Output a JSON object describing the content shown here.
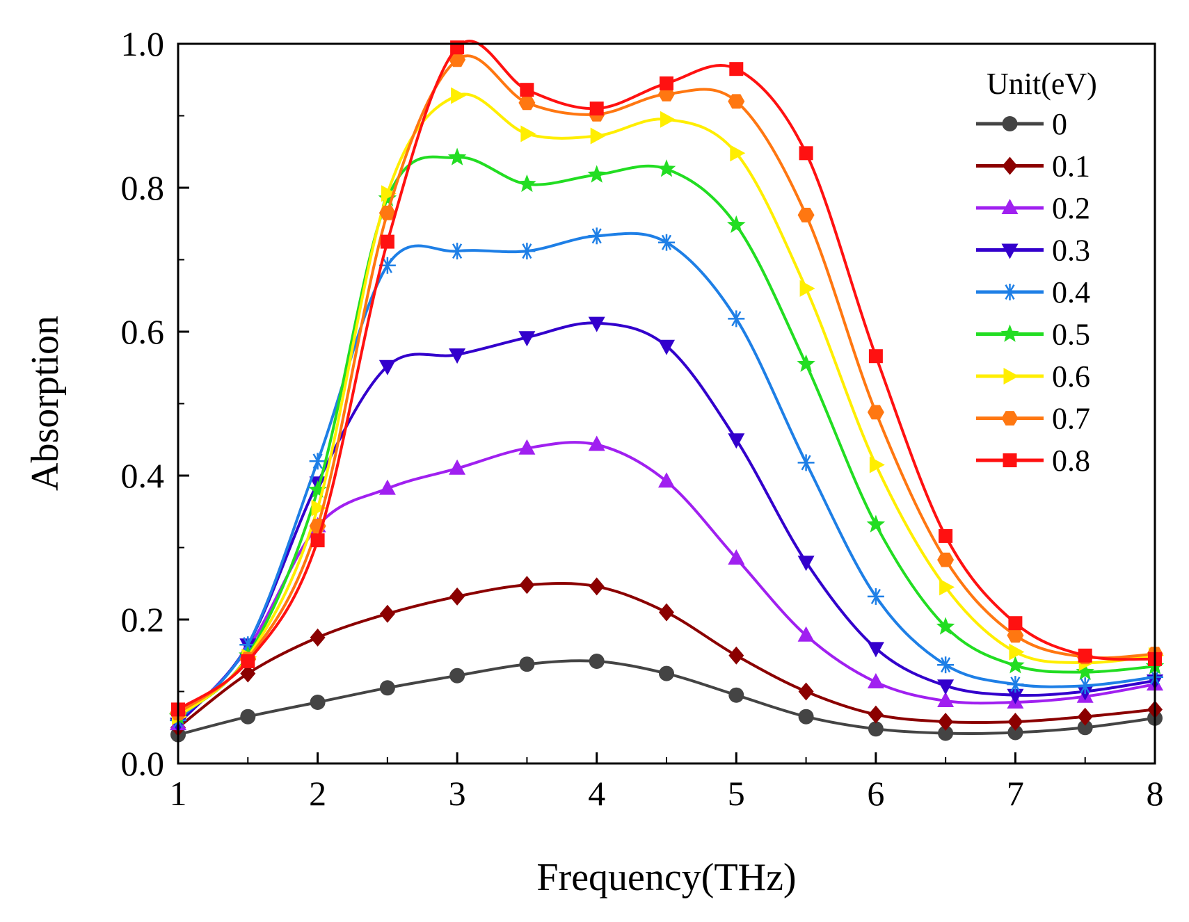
{
  "chart_data": {
    "type": "line",
    "title": "",
    "xlabel": "Frequency(THz)",
    "ylabel": "Absorption",
    "xlim": [
      1,
      8
    ],
    "ylim": [
      0,
      1
    ],
    "xticks": [
      "1",
      "2",
      "3",
      "4",
      "5",
      "6",
      "7",
      "8"
    ],
    "yticks": [
      "0.0",
      "0.2",
      "0.4",
      "0.6",
      "0.8",
      "1.0"
    ],
    "grid": false,
    "legend": {
      "title": "Unit(eV)",
      "position": "top-right"
    },
    "marker_x": [
      1.0,
      1.5,
      2.0,
      2.5,
      3.0,
      3.5,
      4.0,
      4.5,
      5.0,
      5.5,
      6.0,
      6.5,
      7.0,
      7.5,
      8.0
    ],
    "series": [
      {
        "name": "0",
        "color": "#444444",
        "marker": "circle",
        "values": [
          0.04,
          0.065,
          0.085,
          0.105,
          0.122,
          0.138,
          0.142,
          0.125,
          0.095,
          0.065,
          0.048,
          0.042,
          0.043,
          0.05,
          0.063
        ]
      },
      {
        "name": "0.1",
        "color": "#8b0000",
        "marker": "diamond",
        "values": [
          0.05,
          0.125,
          0.175,
          0.208,
          0.232,
          0.248,
          0.246,
          0.21,
          0.15,
          0.1,
          0.068,
          0.058,
          0.058,
          0.065,
          0.075
        ]
      },
      {
        "name": "0.2",
        "color": "#a020f0",
        "marker": "triangle-up",
        "values": [
          0.055,
          0.16,
          0.33,
          0.382,
          0.41,
          0.438,
          0.443,
          0.392,
          0.285,
          0.178,
          0.113,
          0.087,
          0.085,
          0.093,
          0.11
        ]
      },
      {
        "name": "0.3",
        "color": "#3300cc",
        "marker": "triangle-down",
        "values": [
          0.055,
          0.165,
          0.39,
          0.552,
          0.568,
          0.592,
          0.612,
          0.58,
          0.45,
          0.28,
          0.16,
          0.108,
          0.095,
          0.1,
          0.115
        ]
      },
      {
        "name": "0.4",
        "color": "#1e7fe6",
        "marker": "asterisk",
        "values": [
          0.06,
          0.165,
          0.42,
          0.692,
          0.712,
          0.712,
          0.733,
          0.724,
          0.618,
          0.418,
          0.232,
          0.137,
          0.11,
          0.108,
          0.12
        ]
      },
      {
        "name": "0.5",
        "color": "#22dd22",
        "marker": "star",
        "values": [
          0.065,
          0.15,
          0.38,
          0.785,
          0.842,
          0.805,
          0.818,
          0.826,
          0.748,
          0.555,
          0.332,
          0.19,
          0.136,
          0.127,
          0.135
        ]
      },
      {
        "name": "0.6",
        "color": "#ffee00",
        "marker": "triangle-right",
        "values": [
          0.065,
          0.148,
          0.355,
          0.792,
          0.928,
          0.875,
          0.872,
          0.895,
          0.848,
          0.66,
          0.415,
          0.245,
          0.155,
          0.14,
          0.15
        ]
      },
      {
        "name": "0.7",
        "color": "#ff7711",
        "marker": "hexagon",
        "values": [
          0.07,
          0.145,
          0.33,
          0.765,
          0.978,
          0.918,
          0.902,
          0.93,
          0.92,
          0.762,
          0.488,
          0.283,
          0.178,
          0.148,
          0.152
        ]
      },
      {
        "name": "0.8",
        "color": "#ff1111",
        "marker": "square",
        "values": [
          0.075,
          0.142,
          0.31,
          0.725,
          0.995,
          0.936,
          0.91,
          0.945,
          0.965,
          0.848,
          0.566,
          0.316,
          0.195,
          0.15,
          0.145
        ]
      }
    ]
  }
}
